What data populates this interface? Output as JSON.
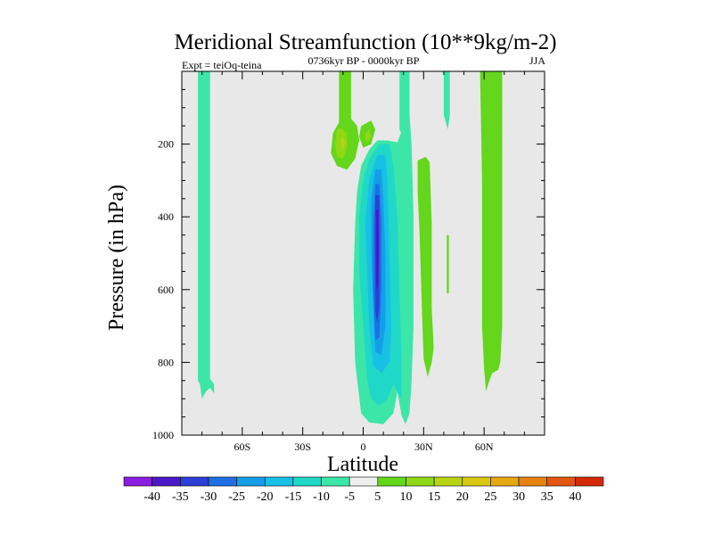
{
  "chart_data": {
    "type": "heatmap",
    "title": "Meridional Streamfunction (10**9kg/m-2)",
    "subtitle_left": "Expt = teiOq-teina",
    "subtitle_center": "0736kyr BP - 0000kyr BP",
    "subtitle_right": "JJA",
    "xlabel": "Latitude",
    "ylabel": "Pressure (in hPa)",
    "xlim": [
      -90,
      90
    ],
    "ylim": [
      1000,
      0
    ],
    "x_ticks": [
      {
        "value": -60,
        "label": "60S"
      },
      {
        "value": -30,
        "label": "30S"
      },
      {
        "value": 0,
        "label": "0"
      },
      {
        "value": 30,
        "label": "30N"
      },
      {
        "value": 60,
        "label": "60N"
      }
    ],
    "y_ticks": [
      {
        "value": 200,
        "label": "200"
      },
      {
        "value": 400,
        "label": "400"
      },
      {
        "value": 600,
        "label": "600"
      },
      {
        "value": 800,
        "label": "800"
      },
      {
        "value": 1000,
        "label": "1000"
      }
    ],
    "colorbar": {
      "labels": [
        "-40",
        "-35",
        "-30",
        "-25",
        "-20",
        "-15",
        "-10",
        "-5",
        "5",
        "10",
        "15",
        "20",
        "25",
        "30",
        "35",
        "40"
      ],
      "colors": [
        "#8a1de0",
        "#4b18c8",
        "#2d3fd6",
        "#1e6fe3",
        "#139fe8",
        "#18c0e6",
        "#1fd8c8",
        "#3ce6a8",
        "#eeeeee",
        "#64d61c",
        "#8fd816",
        "#b7d414",
        "#d9c712",
        "#e6a811",
        "#e6820f",
        "#e2560e",
        "#d42a0a"
      ]
    },
    "regions": [
      {
        "name": "60S westerly column",
        "level": "-5",
        "color": "#3ce6a8",
        "outline": [
          [
            -82,
            0
          ],
          [
            -76,
            0
          ],
          [
            -76,
            845
          ],
          [
            -74,
            860
          ],
          [
            -74,
            885
          ],
          [
            -76,
            870
          ],
          [
            -78,
            880
          ],
          [
            -80,
            900
          ],
          [
            -81,
            860
          ],
          [
            -82,
            850
          ]
        ]
      },
      {
        "name": "upper-left green cell",
        "level": "5",
        "color": "#64d61c",
        "outline": [
          [
            -12,
            0
          ],
          [
            -6,
            0
          ],
          [
            -6,
            130
          ],
          [
            -3,
            150
          ],
          [
            -2,
            190
          ],
          [
            -4,
            240
          ],
          [
            -8,
            270
          ],
          [
            -13,
            260
          ],
          [
            -16,
            225
          ],
          [
            -15,
            170
          ],
          [
            -12,
            140
          ]
        ]
      },
      {
        "name": "upper-left inner cell",
        "level": "10",
        "color": "#8fd816",
        "outline": [
          [
            -13,
            160
          ],
          [
            -11,
            155
          ],
          [
            -8,
            170
          ],
          [
            -8,
            210
          ],
          [
            -10,
            240
          ],
          [
            -13,
            235
          ],
          [
            -14,
            200
          ]
        ]
      },
      {
        "name": "upper-left core",
        "level": "15",
        "color": "#b7d414",
        "outline": [
          [
            -11,
            185
          ],
          [
            -10,
            180
          ],
          [
            -9,
            195
          ],
          [
            -10,
            215
          ],
          [
            -11,
            210
          ]
        ]
      },
      {
        "name": "small green cell",
        "level": "5",
        "color": "#64d61c",
        "outline": [
          [
            -1,
            150
          ],
          [
            4,
            135
          ],
          [
            6,
            160
          ],
          [
            4,
            200
          ],
          [
            0,
            210
          ],
          [
            -2,
            180
          ]
        ]
      },
      {
        "name": "small green core",
        "level": "10",
        "color": "#8fd816",
        "outline": [
          [
            1,
            170
          ],
          [
            3,
            160
          ],
          [
            4,
            180
          ],
          [
            2,
            195
          ],
          [
            1,
            185
          ]
        ]
      },
      {
        "name": "tropical column",
        "level": "-5",
        "color": "#3ce6a8",
        "outline": [
          [
            20,
            0
          ],
          [
            23,
            0
          ],
          [
            23,
            120
          ],
          [
            24,
            200
          ],
          [
            25,
            400
          ],
          [
            25,
            700
          ],
          [
            24,
            850
          ],
          [
            23,
            940
          ],
          [
            21,
            970
          ],
          [
            19,
            945
          ],
          [
            17,
            880
          ],
          [
            15,
            940
          ],
          [
            10,
            970
          ],
          [
            3,
            965
          ],
          [
            -1,
            940
          ],
          [
            -4,
            800
          ],
          [
            -5,
            600
          ],
          [
            -4,
            420
          ],
          [
            -3,
            330
          ],
          [
            -1,
            260
          ],
          [
            3,
            215
          ],
          [
            7,
            190
          ],
          [
            12,
            190
          ],
          [
            17,
            195
          ],
          [
            20,
            150
          ]
        ]
      },
      {
        "name": "tropical -10 contour",
        "level": "-10",
        "color": "#1fd8c8",
        "outline": [
          [
            8,
            200
          ],
          [
            13,
            200
          ],
          [
            15,
            260
          ],
          [
            17,
            400
          ],
          [
            18,
            600
          ],
          [
            19,
            800
          ],
          [
            19,
            900
          ],
          [
            15,
            860
          ],
          [
            12,
            900
          ],
          [
            8,
            920
          ],
          [
            4,
            900
          ],
          [
            2,
            850
          ],
          [
            0,
            700
          ],
          [
            -2,
            550
          ],
          [
            -2,
            400
          ],
          [
            0,
            300
          ],
          [
            3,
            240
          ]
        ]
      },
      {
        "name": "tropical -15 contour",
        "level": "-15",
        "color": "#18c0e6",
        "outline": [
          [
            7,
            230
          ],
          [
            11,
            230
          ],
          [
            12,
            300
          ],
          [
            13,
            500
          ],
          [
            14,
            700
          ],
          [
            13,
            800
          ],
          [
            9,
            830
          ],
          [
            5,
            810
          ],
          [
            3,
            700
          ],
          [
            2,
            550
          ],
          [
            1,
            420
          ],
          [
            3,
            300
          ]
        ]
      },
      {
        "name": "tropical -20 contour",
        "level": "-20",
        "color": "#139fe8",
        "outline": [
          [
            6,
            270
          ],
          [
            9,
            270
          ],
          [
            10,
            350
          ],
          [
            11,
            500
          ],
          [
            11,
            700
          ],
          [
            9,
            780
          ],
          [
            6,
            770
          ],
          [
            5,
            650
          ],
          [
            4,
            500
          ],
          [
            4,
            350
          ]
        ]
      },
      {
        "name": "tropical -25 contour",
        "level": "-25",
        "color": "#1e6fe3",
        "outline": [
          [
            6,
            310
          ],
          [
            8,
            310
          ],
          [
            9,
            400
          ],
          [
            9,
            600
          ],
          [
            8,
            730
          ],
          [
            6,
            740
          ],
          [
            5,
            600
          ],
          [
            5,
            420
          ]
        ]
      },
      {
        "name": "tropical -30 contour",
        "level": "-30",
        "color": "#2d3fd6",
        "outline": [
          [
            6,
            340
          ],
          [
            8,
            340
          ],
          [
            8,
            500
          ],
          [
            8,
            650
          ],
          [
            7,
            690
          ],
          [
            6,
            660
          ],
          [
            6,
            500
          ]
        ]
      },
      {
        "name": "tropical -35 core",
        "level": "-35",
        "color": "#4b18c8",
        "outline": [
          [
            6.3,
            380
          ],
          [
            7.6,
            380
          ],
          [
            7.8,
            500
          ],
          [
            7.4,
            590
          ],
          [
            6.6,
            600
          ],
          [
            6.3,
            500
          ]
        ]
      },
      {
        "name": "narrow column 30N",
        "level": "-5",
        "color": "#3ce6a8",
        "outline": [
          [
            18,
            0
          ],
          [
            21,
            0
          ],
          [
            21,
            110
          ],
          [
            20,
            180
          ],
          [
            18,
            160
          ]
        ]
      },
      {
        "name": "green column 30N",
        "level": "5",
        "color": "#64d61c",
        "outline": [
          [
            27,
            245
          ],
          [
            31,
            235
          ],
          [
            33,
            250
          ],
          [
            34,
            420
          ],
          [
            34,
            650
          ],
          [
            35,
            760
          ],
          [
            34,
            800
          ],
          [
            32,
            840
          ],
          [
            30,
            790
          ],
          [
            29,
            630
          ],
          [
            28,
            450
          ],
          [
            27,
            330
          ]
        ]
      },
      {
        "name": "narrow column 40N",
        "level": "-5",
        "color": "#3ce6a8",
        "outline": [
          [
            40,
            0
          ],
          [
            43,
            0
          ],
          [
            43,
            120
          ],
          [
            42,
            160
          ],
          [
            40,
            120
          ]
        ]
      },
      {
        "name": "thin streak 42N",
        "level": "5",
        "color": "#64d61c",
        "outline": [
          [
            41.5,
            450
          ],
          [
            42.5,
            450
          ],
          [
            42.5,
            610
          ],
          [
            41.5,
            610
          ]
        ]
      },
      {
        "name": "green column 60N",
        "level": "5",
        "color": "#64d61c",
        "outline": [
          [
            58,
            0
          ],
          [
            69,
            0
          ],
          [
            69,
            350
          ],
          [
            69,
            700
          ],
          [
            68,
            800
          ],
          [
            67,
            820
          ],
          [
            64,
            830
          ],
          [
            62,
            860
          ],
          [
            61,
            880
          ],
          [
            60,
            820
          ],
          [
            59,
            700
          ],
          [
            59,
            300
          ]
        ]
      }
    ]
  }
}
